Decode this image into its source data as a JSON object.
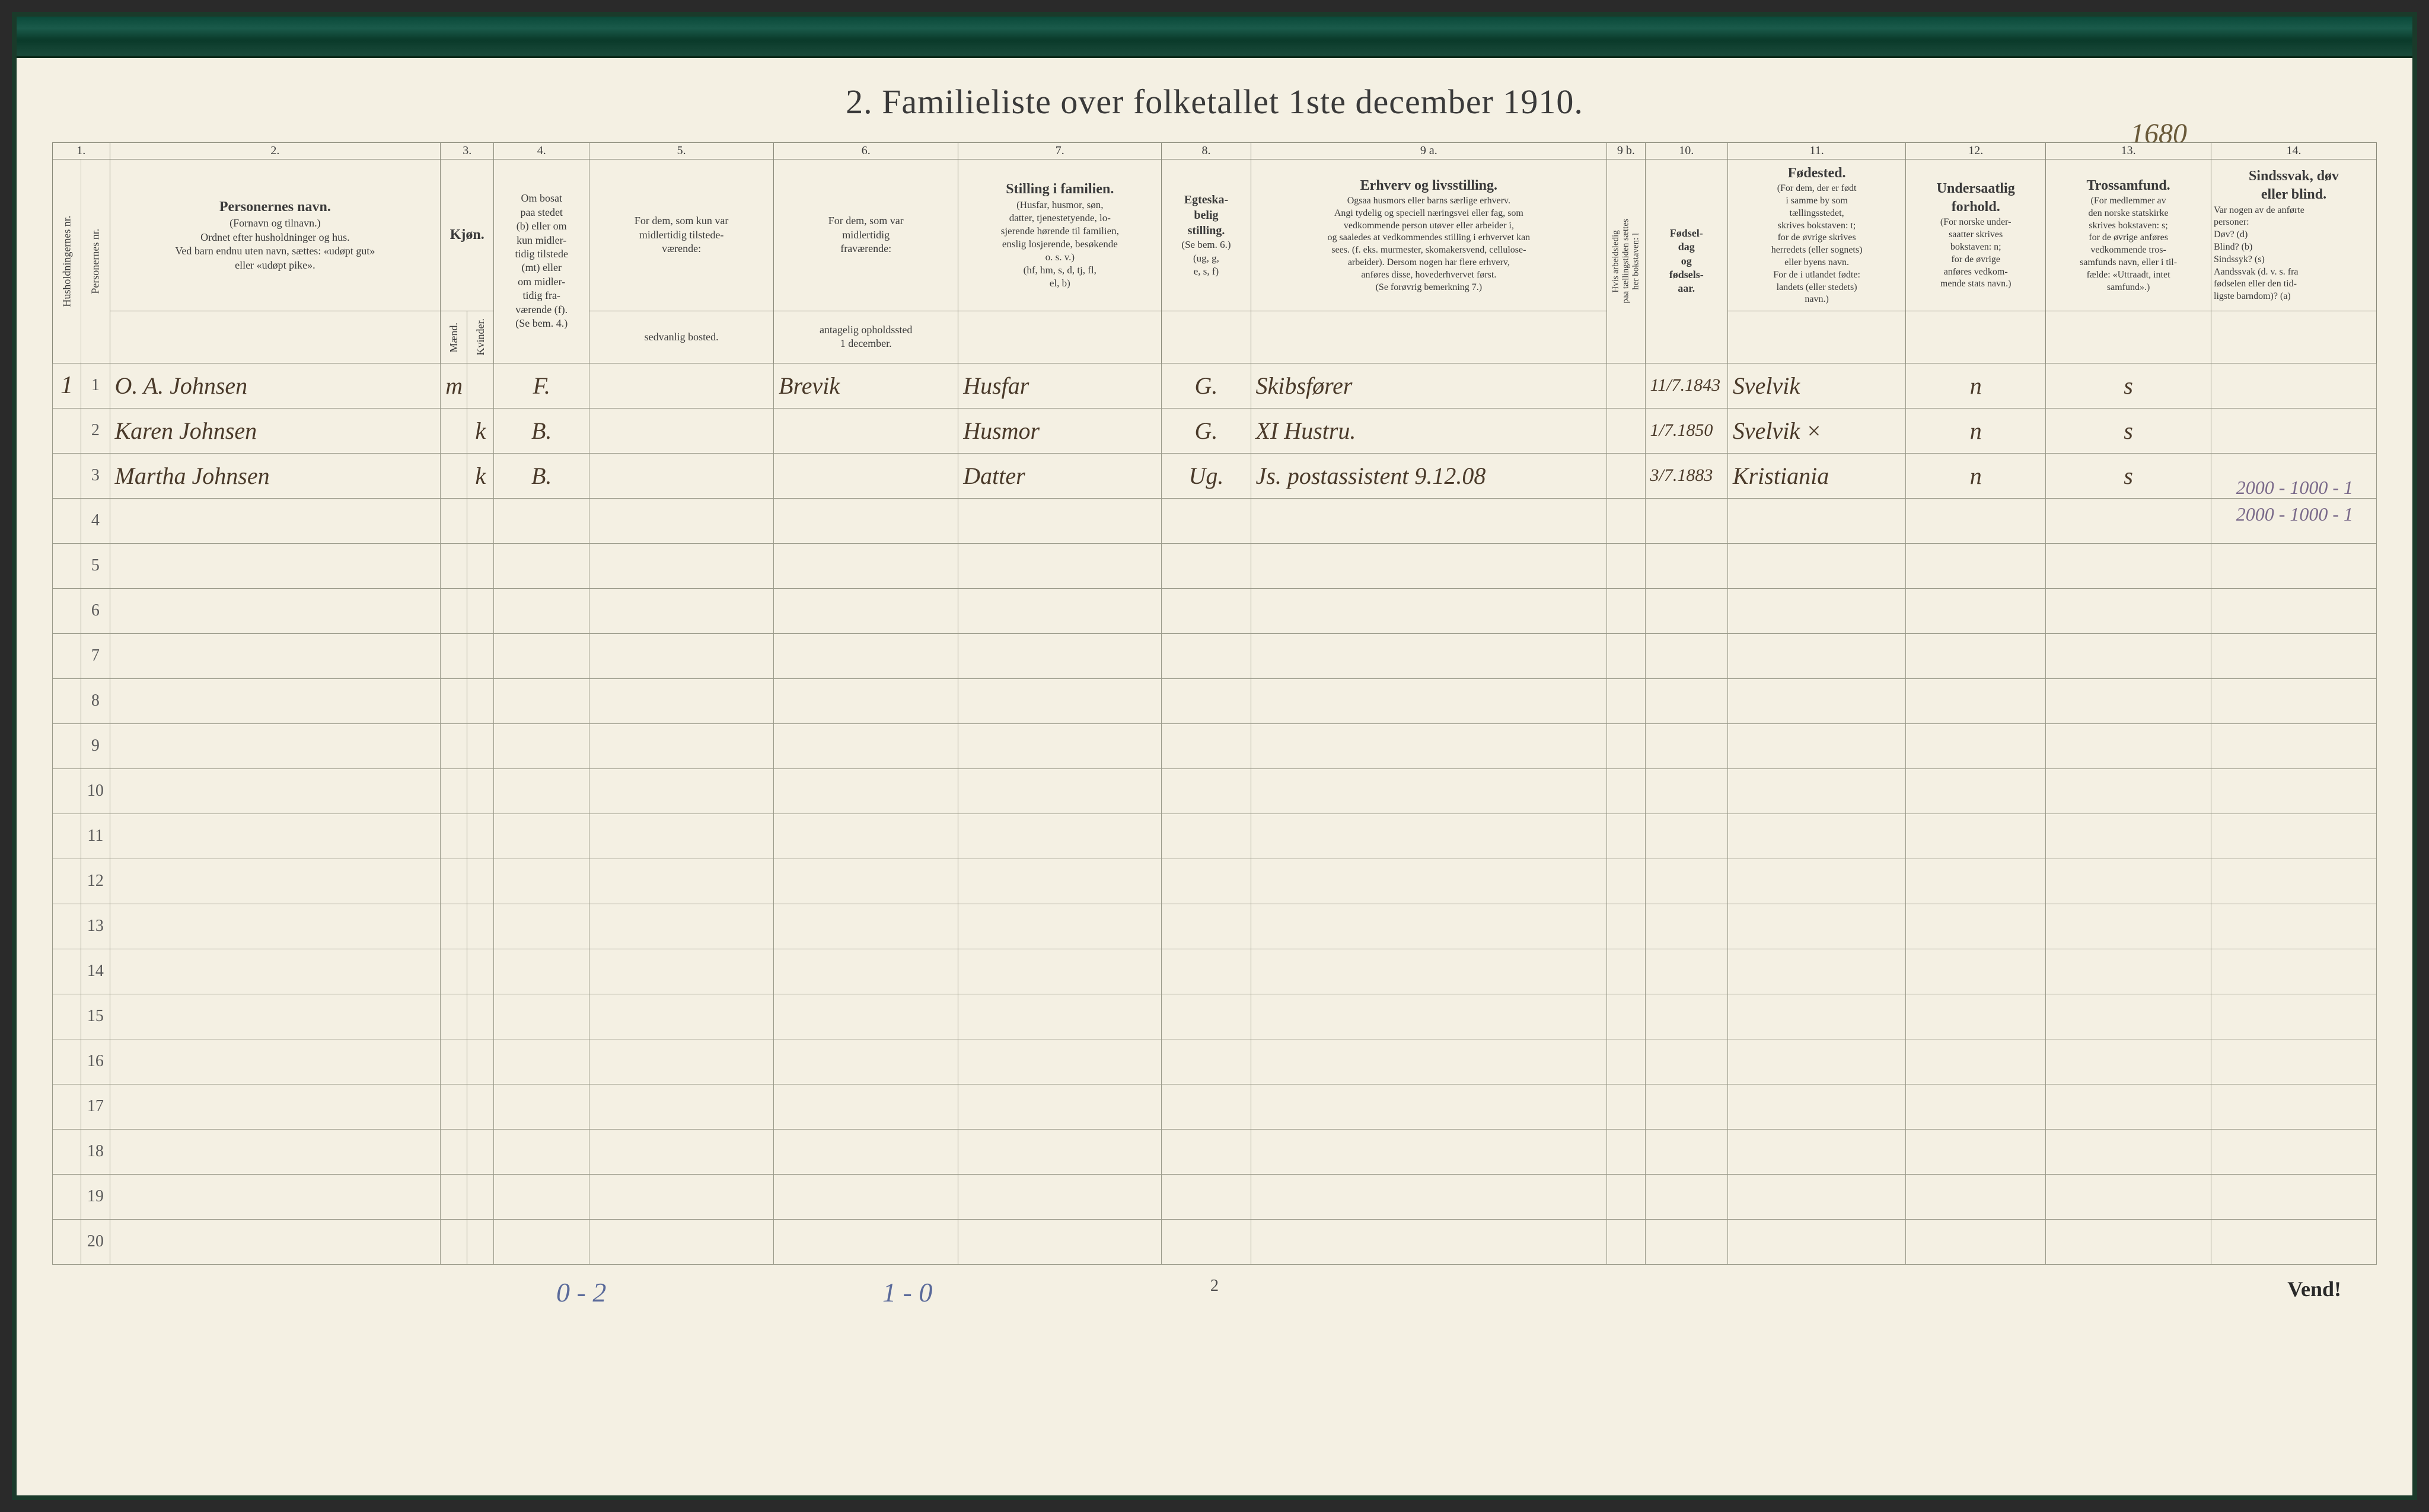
{
  "title": "2.   Familieliste over folketallet 1ste december 1910.",
  "page_annotation": "1680",
  "margin_note_line1": "2000 - 1000 - 1",
  "margin_note_line2": "2000 - 1000 - 1",
  "columns": {
    "nums": [
      "1.",
      "2.",
      "3.",
      "4.",
      "5.",
      "6.",
      "7.",
      "8.",
      "9 a.",
      "9 b.",
      "10.",
      "11.",
      "12.",
      "13.",
      "14."
    ],
    "h1_vert": "Husholdningernes nr.",
    "h1b_vert": "Personernes nr.",
    "h2_main": "Personernes navn.",
    "h2_sub": "(Fornavn og tilnavn.)\nOrdnet efter husholdninger og hus.\nVed barn endnu uten navn, sættes: «udøpt gut»\neller «udøpt pike».",
    "h3_main": "Kjøn.",
    "h3_sub_m": "Mænd.",
    "h3_sub_k": "Kvinder.",
    "h3_mk": "m.  k.",
    "h4_main": "Om bosat\npaa stedet\n(b) eller om\nkun midler-\ntidig tilstede\n(mt) eller\nom midler-\ntidig fra-\nværende (f).\n(Se bem. 4.)",
    "h5_main": "For dem, som kun var\nmidlertidig tilstede-\nværende:",
    "h5_sub": "sedvanlig bosted.",
    "h6_main": "For dem, som var\nmidlertidig\nfraværende:",
    "h6_sub": "antagelig opholdssted\n1 december.",
    "h7_main": "Stilling i familien.",
    "h7_sub": "(Husfar, husmor, søn,\ndatter, tjenestetyende, lo-\nsjerende hørende til familien,\nenslig losjerende, besøkende\no. s. v.)\n(hf, hm, s, d, tj, fl,\nel, b)",
    "h8_main": "Egteska-\nbelig\nstilling.",
    "h8_sub": "(Se bem. 6.)\n(ug, g,\ne, s, f)",
    "h9a_main": "Erhverv og livsstilling.",
    "h9a_sub": "Ogsaa husmors eller barns særlige erhverv.\nAngi tydelig og speciell næringsvei eller fag, som\nvedkommende person utøver eller arbeider i,\nog saaledes at vedkommendes stilling i erhvervet kan\nsees. (f. eks. murmester, skomakersvend, cellulose-\narbeider). Dersom nogen har flere erhverv,\nanføres disse, hovederhvervet først.\n(Se forøvrig bemerkning 7.)",
    "h9b_vert": "Hvis arbeidsledig\npaa tællingstiden sættes\nher bokstaven: l",
    "h10_main": "Fødsel-\ndag\nog\nfødsels-\naar.",
    "h11_main": "Fødested.",
    "h11_sub": "(For dem, der er født\ni samme by som\ntællingsstedet,\nskrives bokstaven: t;\nfor de øvrige skrives\nherredets (eller sognets)\neller byens navn.\nFor de i utlandet fødte:\nlandets (eller stedets)\nnavn.)",
    "h12_main": "Undersaatlig\nforhold.",
    "h12_sub": "(For norske under-\nsaatter skrives\nbokstaven: n;\nfor de øvrige\nanføres vedkom-\nmende stats navn.)",
    "h13_main": "Trossamfund.",
    "h13_sub": "(For medlemmer av\nden norske statskirke\nskrives bokstaven: s;\nfor de øvrige anføres\nvedkommende tros-\nsamfunds navn, eller i til-\nfælde: «Uttraadt, intet\nsamfund».)",
    "h14_main": "Sindssvak, døv\neller blind.",
    "h14_sub": "Var nogen av de anførte\npersoner:\nDøv?          (d)\nBlind?         (b)\nSindssyk?    (s)\nAandssvak (d. v. s. fra\nfødselen eller den tid-\nligste barndom)?  (a)"
  },
  "rows": [
    {
      "hh": "1",
      "n": "1",
      "name": "O. A. Johnsen",
      "sex": "m",
      "res": "F.",
      "temp": "",
      "absent": "Brevik",
      "family": "Husfar",
      "marital": "G.",
      "occupation": "Skibsfører",
      "work": "",
      "birth": "11/7.1843",
      "birthplace": "Svelvik",
      "nation": "n",
      "faith": "s",
      "dis": ""
    },
    {
      "hh": "",
      "n": "2",
      "name": "Karen Johnsen",
      "sex": "k",
      "res": "B.",
      "temp": "",
      "absent": "",
      "family": "Husmor",
      "marital": "G.",
      "occupation": "XI   Hustru.",
      "work": "",
      "birth": "1/7.1850",
      "birthplace": "Svelvik  ×",
      "nation": "n",
      "faith": "s",
      "dis": ""
    },
    {
      "hh": "",
      "n": "3",
      "name": "Martha Johnsen",
      "sex": "k",
      "res": "B.",
      "temp": "",
      "absent": "",
      "family": "Datter",
      "marital": "Ug.",
      "occupation": "Js.  postassistent  9.12.08",
      "work": "",
      "birth": "3/7.1883",
      "birthplace": "Kristiania",
      "nation": "n",
      "faith": "s",
      "dis": ""
    }
  ],
  "empty_row_count": 17,
  "bottom": {
    "left_note": "0 - 2",
    "mid_note": "1 - 0",
    "page": "2",
    "vend": "Vend!"
  },
  "colwidths": {
    "c1a": 45,
    "c1b": 45,
    "c2": 520,
    "c3m": 42,
    "c3k": 42,
    "c4": 150,
    "c5": 290,
    "c6": 290,
    "c7": 320,
    "c8": 140,
    "c9a": 560,
    "c9b": 60,
    "c10": 130,
    "c11": 280,
    "c12": 220,
    "c13": 260,
    "c14": 260
  },
  "colors": {
    "paper": "#f4f0e3",
    "border": "#8a8a7a",
    "text": "#3a3a3a",
    "handwriting": "#4a3a2a",
    "blue_ink": "#5a6a9a",
    "pencil": "#7a6a8a"
  }
}
